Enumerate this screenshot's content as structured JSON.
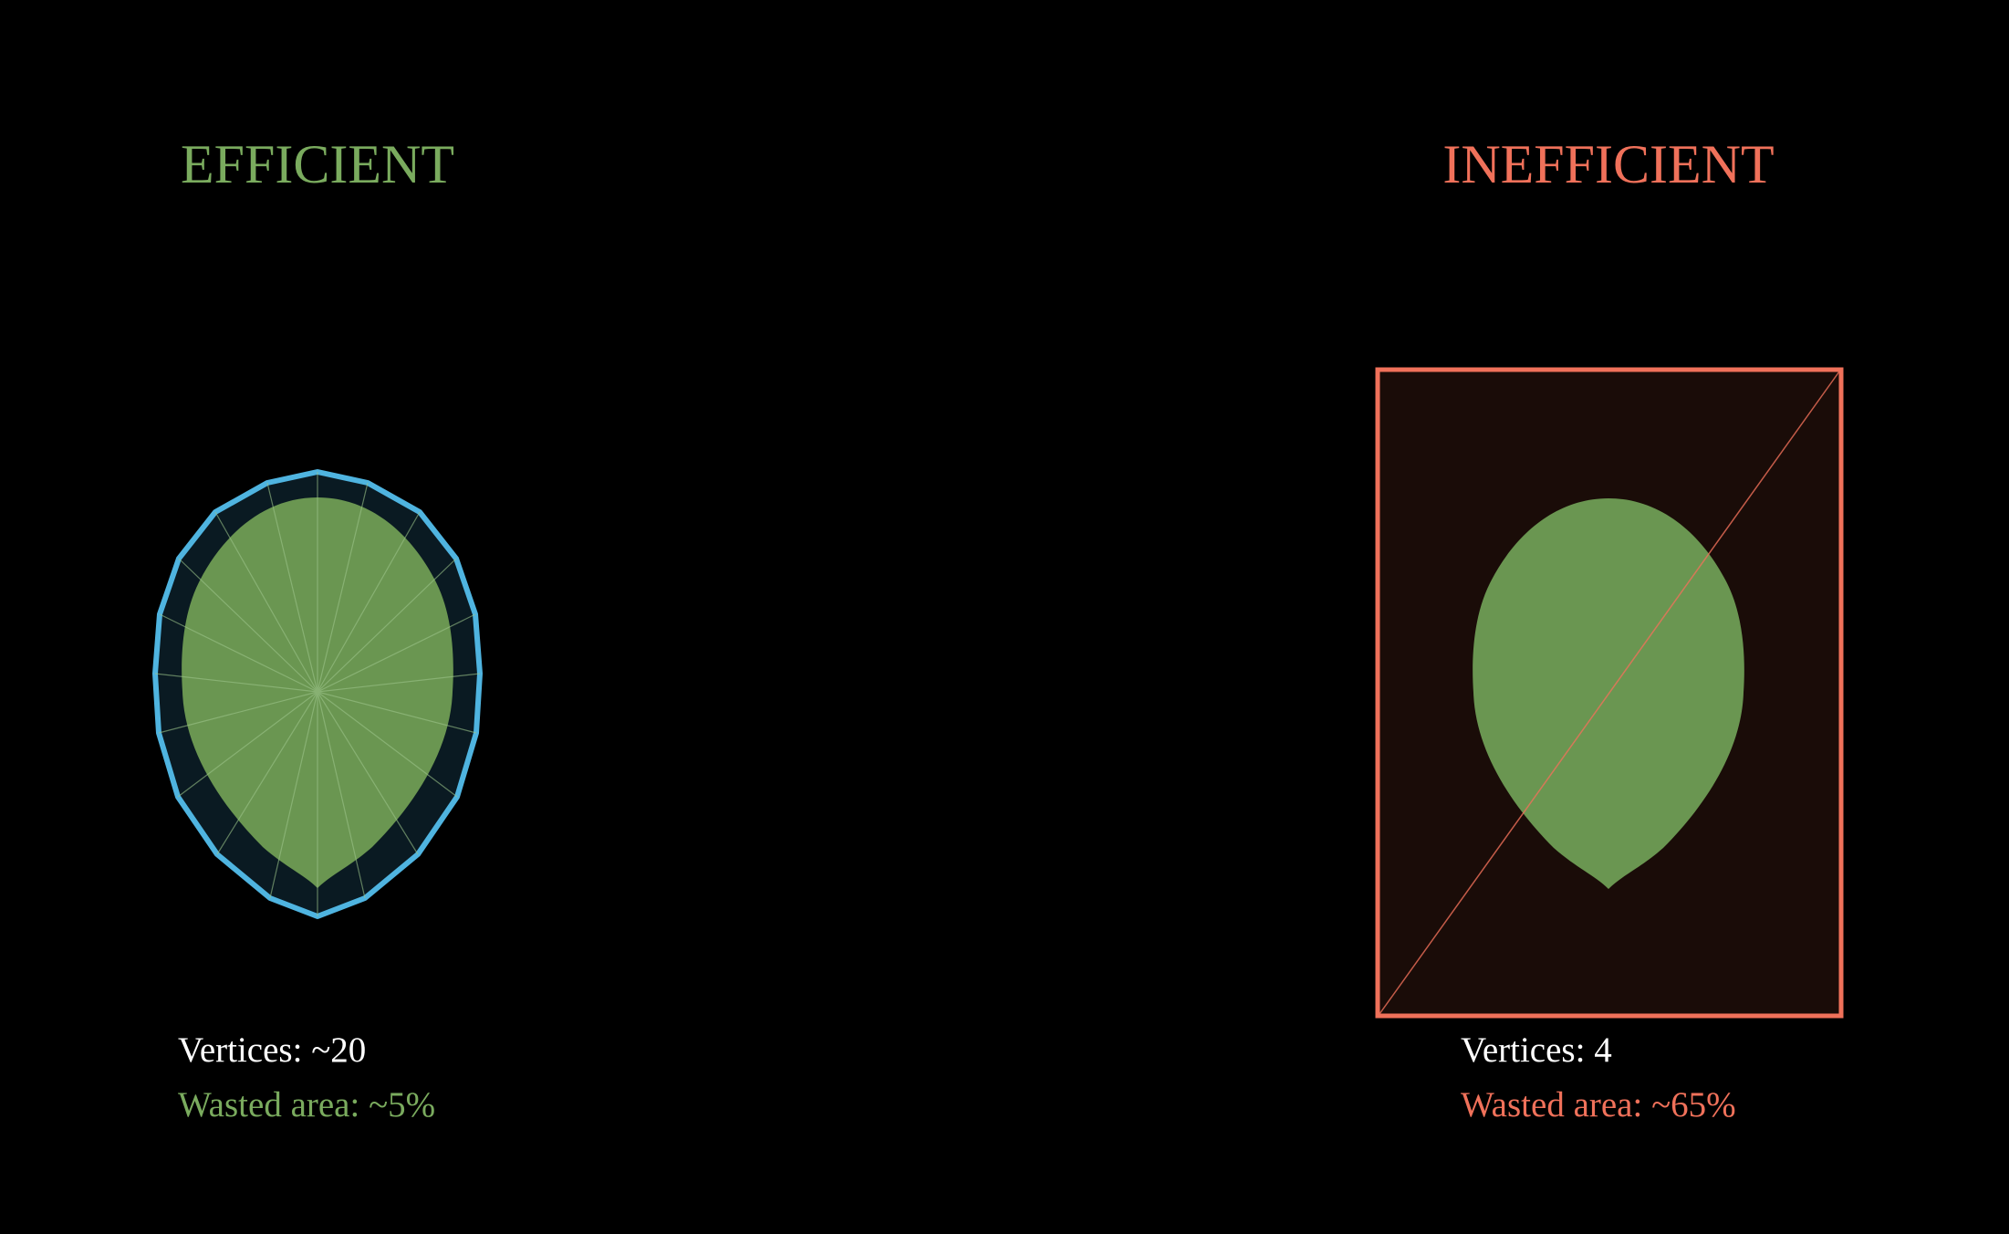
{
  "left": {
    "title": "EFFICIENT",
    "vertices": "Vertices: ~20",
    "wasted": "Wasted area: ~5%"
  },
  "right": {
    "title": "INEFFICIENT",
    "vertices": "Vertices: 4",
    "wasted": "Wasted area: ~65%"
  }
}
